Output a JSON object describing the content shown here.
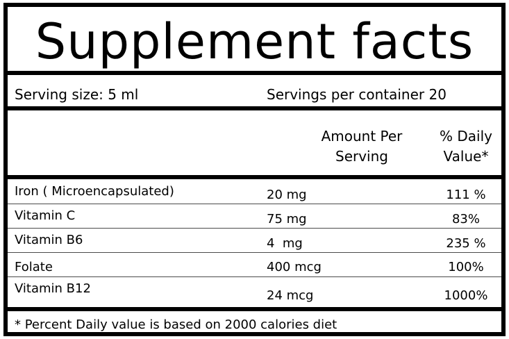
{
  "title": "Supplement facts",
  "serving": {
    "size": "Serving size: 5 ml",
    "per_container": "Servings per container 20"
  },
  "columns": {
    "amount": [
      "Amount Per",
      "Serving"
    ],
    "daily_value": [
      "% Daily",
      "Value*"
    ]
  },
  "nutrients": [
    {
      "name": "Iron ( Microencapsulated)",
      "amount": "20 mg",
      "dv": "111 %"
    },
    {
      "name": "Vitamin C",
      "amount": "75 mg",
      "dv": "83%"
    },
    {
      "name": "Vitamin B6",
      "amount": "4  mg",
      "dv": "235 %"
    },
    {
      "name": "Folate",
      "amount": "400 mcg",
      "dv": "100%"
    },
    {
      "name": "Vitamin B12",
      "amount": "24 mcg",
      "dv": "1000%"
    }
  ],
  "footnote": "* Percent Daily value is based on 2000 calories diet"
}
